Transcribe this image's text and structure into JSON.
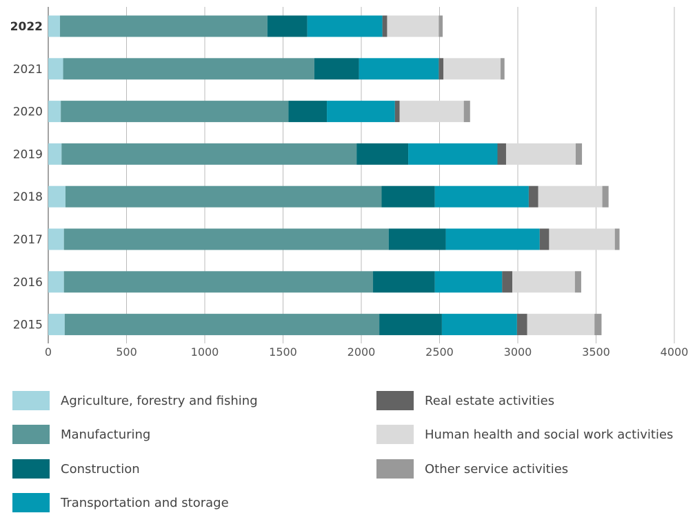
{
  "chart_data": {
    "type": "bar",
    "orientation": "horizontal",
    "stacked": true,
    "title": "",
    "xlabel": "",
    "ylabel": "",
    "xlim": [
      0,
      4000
    ],
    "xticks": [
      "0",
      "500",
      "1000",
      "1500",
      "2000",
      "2500",
      "3000",
      "3500",
      "4000"
    ],
    "grid": "vertical",
    "legend_position": "bottom",
    "categories": [
      "2022",
      "2021",
      "2020",
      "2019",
      "2018",
      "2017",
      "2016",
      "2015"
    ],
    "highlighted_category": "2022",
    "series": [
      {
        "name": "Agriculture, forestry and fishing",
        "color": "#a3d6e0",
        "values": [
          75,
          95,
          80,
          85,
          110,
          100,
          100,
          105
        ]
      },
      {
        "name": "Manufacturing",
        "color": "#5a9798",
        "values": [
          1325,
          1605,
          1455,
          1885,
          2020,
          2075,
          1975,
          2010
        ]
      },
      {
        "name": "Construction",
        "color": "#006b77",
        "values": [
          255,
          285,
          245,
          330,
          340,
          365,
          395,
          400
        ]
      },
      {
        "name": "Transportation and storage",
        "color": "#0399b3",
        "values": [
          480,
          510,
          435,
          570,
          600,
          600,
          430,
          480
        ]
      },
      {
        "name": "Real estate activities",
        "color": "#636363",
        "values": [
          30,
          30,
          30,
          55,
          60,
          60,
          65,
          65
        ]
      },
      {
        "name": "Human health and social work activities",
        "color": "#dadada",
        "values": [
          330,
          365,
          410,
          445,
          410,
          420,
          400,
          430
        ]
      },
      {
        "name": "Other service activities",
        "color": "#999999",
        "values": [
          25,
          25,
          40,
          40,
          40,
          30,
          40,
          45
        ]
      }
    ]
  }
}
